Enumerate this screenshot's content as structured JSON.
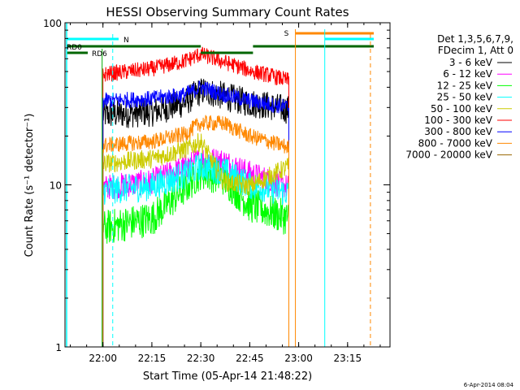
{
  "chart_data": {
    "type": "line",
    "title": "HESSI Observing Summary Count Rates",
    "xlabel": "Start Time (05-Apr-14 21:48:22)",
    "ylabel": "Count Rate (s⁻¹ detector⁻¹)",
    "y_scale": "log",
    "ylim": [
      1,
      100
    ],
    "xlim": [
      "21:48:22",
      "23:28:00"
    ],
    "x_ticks": [
      "22:00",
      "22:15",
      "22:30",
      "22:45",
      "23:00",
      "23:15"
    ],
    "y_ticks": [
      "1",
      "10",
      "100"
    ],
    "grid": false,
    "legend_position": "right",
    "legend_header": [
      "Det 1,3,5,6,7,9,",
      "FDecim 1, Att 0"
    ],
    "timestamp": "6-Apr-2014 08:04",
    "flag_labels": {
      "rd0": "RD0",
      "rd6": "RD6",
      "n": "N",
      "s": "S"
    },
    "series": [
      {
        "name": "3 - 6 keV",
        "color": "#000000",
        "x": [
          "22:00",
          "22:15",
          "22:25",
          "22:29",
          "22:31",
          "22:40",
          "22:45",
          "22:50",
          "22:57"
        ],
        "values": [
          27,
          28,
          32,
          37,
          38,
          34,
          32,
          31,
          29
        ]
      },
      {
        "name": "6 - 12 keV",
        "color": "#ff00ff",
        "x": [
          "22:00",
          "22:15",
          "22:25",
          "22:30",
          "22:37",
          "22:45",
          "22:57"
        ],
        "values": [
          9.6,
          10.5,
          12.8,
          14.5,
          14,
          11.8,
          9.6
        ]
      },
      {
        "name": "12 - 25 keV",
        "color": "#00ff00",
        "x": [
          "22:00",
          "22:15",
          "22:25",
          "22:30",
          "22:37",
          "22:45",
          "22:57"
        ],
        "values": [
          5.4,
          6.2,
          9.5,
          12,
          11,
          7.5,
          6.2
        ]
      },
      {
        "name": "25 - 50 keV",
        "color": "#00ffff",
        "x": [
          "22:00",
          "22:15",
          "22:25",
          "22:30",
          "22:37",
          "22:45",
          "22:57"
        ],
        "values": [
          9.2,
          9.8,
          11.5,
          13,
          12.2,
          10,
          8.9
        ]
      },
      {
        "name": "50 - 100 keV",
        "color": "#cccc00",
        "x": [
          "22:00",
          "22:15",
          "22:25",
          "22:30",
          "22:37",
          "22:45",
          "22:57"
        ],
        "values": [
          13.5,
          14.5,
          16.5,
          18.5,
          10.5,
          9.8,
          13
        ]
      },
      {
        "name": "100 - 300 keV",
        "color": "#ff0000",
        "x": [
          "22:00",
          "22:15",
          "22:25",
          "22:30",
          "22:46",
          "22:50",
          "22:57"
        ],
        "values": [
          48,
          52,
          58,
          64,
          50,
          48,
          44
        ]
      },
      {
        "name": "300 - 800 keV",
        "color": "#0000ff",
        "x": [
          "22:00",
          "22:15",
          "22:25",
          "22:30",
          "22:37",
          "22:45",
          "22:57"
        ],
        "values": [
          33,
          34,
          36,
          40,
          36,
          33,
          30
        ]
      },
      {
        "name": "800 - 7000 keV",
        "color": "#ff8800",
        "x": [
          "22:00",
          "22:15",
          "22:25",
          "22:30",
          "22:37",
          "22:45",
          "22:57"
        ],
        "values": [
          17.5,
          18.5,
          20.5,
          24,
          24,
          20,
          17
        ]
      },
      {
        "name": "7000 - 20000 keV",
        "color": "#996600",
        "x": [],
        "values": []
      }
    ]
  }
}
